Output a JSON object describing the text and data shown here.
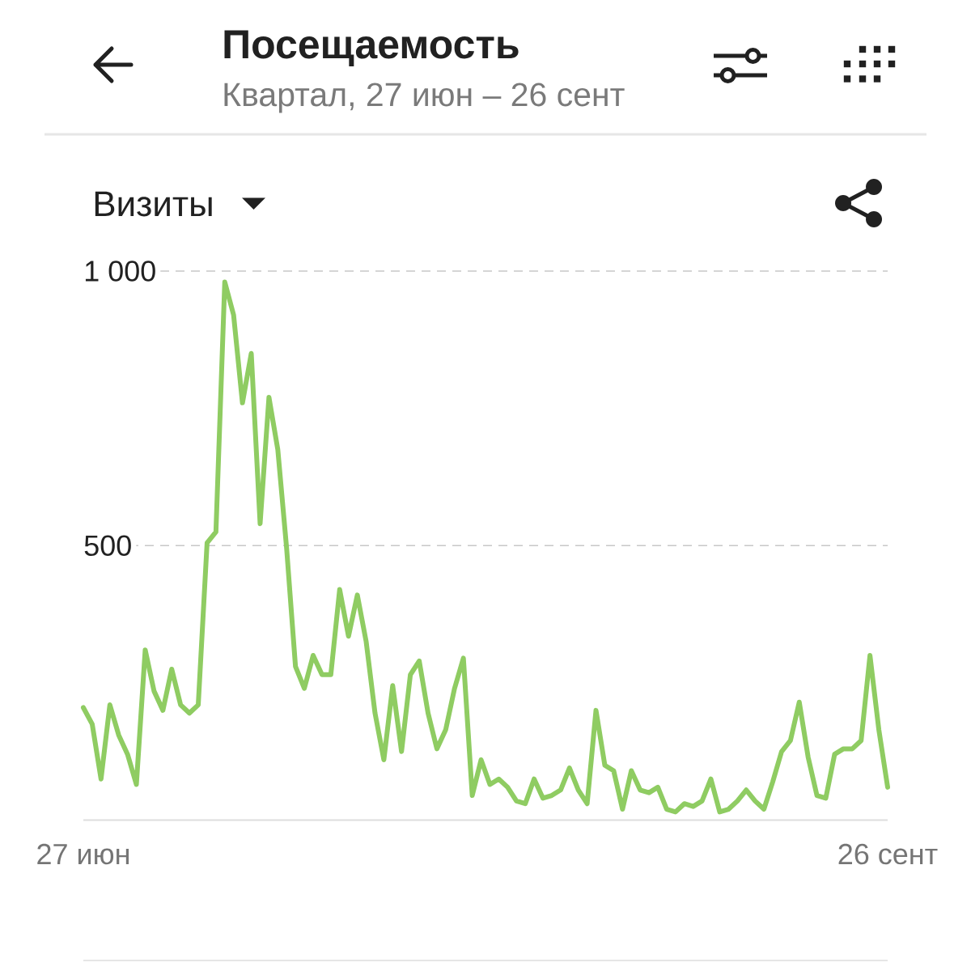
{
  "chart_data": {
    "type": "line",
    "title": "Посещаемость",
    "subtitle": "Квартал, 27 июн – 26 сент",
    "ylabel": "Визиты",
    "categories": [
      "27 июн",
      null,
      null,
      null,
      null,
      null,
      null,
      null,
      null,
      null,
      null,
      null,
      null,
      null,
      null,
      null,
      null,
      null,
      null,
      null,
      null,
      null,
      null,
      null,
      null,
      null,
      null,
      null,
      null,
      null,
      null,
      null,
      null,
      null,
      null,
      null,
      null,
      null,
      null,
      null,
      null,
      null,
      null,
      null,
      null,
      null,
      null,
      null,
      null,
      null,
      null,
      null,
      null,
      null,
      null,
      null,
      null,
      null,
      null,
      null,
      null,
      null,
      null,
      null,
      null,
      null,
      null,
      null,
      null,
      null,
      null,
      null,
      null,
      null,
      null,
      null,
      null,
      null,
      null,
      null,
      null,
      null,
      null,
      null,
      null,
      null,
      null,
      null,
      null,
      null,
      null,
      "26 сент"
    ],
    "series": [
      {
        "color": "#8fcc62",
        "values": [
          205,
          175,
          75,
          210,
          155,
          120,
          65,
          310,
          235,
          200,
          275,
          210,
          195,
          210,
          505,
          525,
          980,
          920,
          760,
          850,
          540,
          770,
          675,
          495,
          280,
          240,
          300,
          265,
          265,
          420,
          335,
          410,
          325,
          195,
          110,
          245,
          125,
          265,
          290,
          195,
          130,
          165,
          240,
          295,
          45,
          110,
          65,
          75,
          60,
          35,
          30,
          75,
          40,
          45,
          55,
          95,
          55,
          30,
          200,
          100,
          90,
          20,
          90,
          55,
          50,
          60,
          20,
          15,
          30,
          25,
          35,
          75,
          15,
          20,
          35,
          55,
          35,
          20,
          70,
          125,
          145,
          215,
          115,
          45,
          40,
          120,
          130,
          130,
          145,
          300,
          165,
          60
        ]
      }
    ],
    "ylim": [
      0,
      1000
    ],
    "yticks": [
      {
        "value": 1000,
        "label": "1 000"
      },
      500
    ],
    "grid": "y"
  }
}
